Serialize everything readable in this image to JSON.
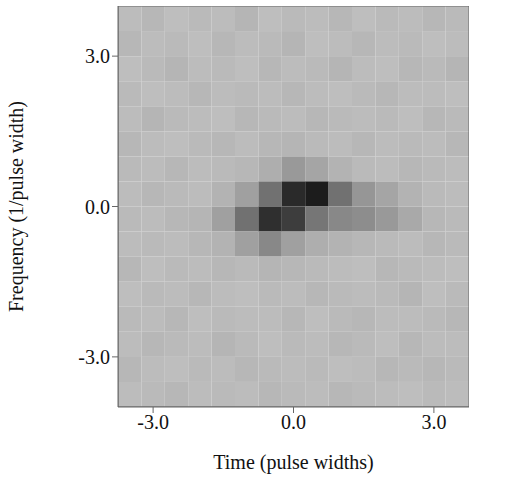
{
  "chart_data": {
    "type": "heatmap",
    "xlabel": "Time (pulse widths)",
    "ylabel": "Frequency (1/pulse width)",
    "xlim": [
      -3.75,
      3.75
    ],
    "ylim": [
      -4,
      4
    ],
    "xticks": [
      {
        "value": -3,
        "label": "-3.0"
      },
      {
        "value": 0,
        "label": "0.0"
      },
      {
        "value": 3,
        "label": "3.0"
      }
    ],
    "yticks": [
      {
        "value": -3,
        "label": "-3.0"
      },
      {
        "value": 0,
        "label": "0.0"
      },
      {
        "value": 3,
        "label": "3.0"
      }
    ],
    "x": [
      -3.5,
      -3,
      -2.5,
      -2,
      -1.5,
      -1,
      -0.5,
      0,
      0.5,
      1,
      1.5,
      2,
      2.5,
      3,
      3.5
    ],
    "y": [
      3.75,
      3.25,
      2.75,
      2.25,
      1.75,
      1.25,
      0.75,
      0.25,
      -0.25,
      -0.75,
      -1.25,
      -1.75,
      -2.25,
      -2.75,
      -3.25,
      -3.75
    ],
    "cells": [
      [
        0.2,
        0.22,
        0.19,
        0.21,
        0.2,
        0.23,
        0.19,
        0.21,
        0.2,
        0.22,
        0.19,
        0.21,
        0.2,
        0.22,
        0.21
      ],
      [
        0.22,
        0.2,
        0.21,
        0.19,
        0.22,
        0.2,
        0.21,
        0.23,
        0.19,
        0.2,
        0.22,
        0.2,
        0.21,
        0.19,
        0.2
      ],
      [
        0.19,
        0.21,
        0.23,
        0.2,
        0.21,
        0.19,
        0.22,
        0.2,
        0.21,
        0.23,
        0.2,
        0.19,
        0.22,
        0.21,
        0.23
      ],
      [
        0.21,
        0.19,
        0.2,
        0.22,
        0.2,
        0.21,
        0.2,
        0.22,
        0.2,
        0.19,
        0.21,
        0.22,
        0.2,
        0.2,
        0.19
      ],
      [
        0.2,
        0.23,
        0.21,
        0.2,
        0.19,
        0.22,
        0.21,
        0.2,
        0.22,
        0.21,
        0.2,
        0.21,
        0.19,
        0.22,
        0.21
      ],
      [
        0.22,
        0.2,
        0.19,
        0.21,
        0.22,
        0.2,
        0.22,
        0.23,
        0.21,
        0.2,
        0.22,
        0.2,
        0.21,
        0.2,
        0.22
      ],
      [
        0.21,
        0.2,
        0.22,
        0.2,
        0.21,
        0.22,
        0.26,
        0.35,
        0.3,
        0.24,
        0.21,
        0.2,
        0.22,
        0.21,
        0.2
      ],
      [
        0.2,
        0.22,
        0.21,
        0.2,
        0.24,
        0.32,
        0.52,
        0.82,
        0.88,
        0.52,
        0.36,
        0.3,
        0.24,
        0.21,
        0.2
      ],
      [
        0.21,
        0.2,
        0.22,
        0.23,
        0.32,
        0.52,
        0.8,
        0.74,
        0.5,
        0.42,
        0.4,
        0.35,
        0.28,
        0.22,
        0.21
      ],
      [
        0.2,
        0.21,
        0.2,
        0.22,
        0.24,
        0.32,
        0.42,
        0.32,
        0.26,
        0.24,
        0.22,
        0.21,
        0.2,
        0.22,
        0.21
      ],
      [
        0.22,
        0.19,
        0.21,
        0.2,
        0.22,
        0.21,
        0.23,
        0.22,
        0.21,
        0.2,
        0.19,
        0.22,
        0.21,
        0.2,
        0.19
      ],
      [
        0.19,
        0.21,
        0.2,
        0.22,
        0.2,
        0.19,
        0.21,
        0.2,
        0.22,
        0.21,
        0.2,
        0.21,
        0.23,
        0.19,
        0.21
      ],
      [
        0.21,
        0.2,
        0.22,
        0.19,
        0.21,
        0.2,
        0.2,
        0.22,
        0.19,
        0.21,
        0.22,
        0.2,
        0.2,
        0.21,
        0.22
      ],
      [
        0.2,
        0.22,
        0.21,
        0.2,
        0.23,
        0.21,
        0.19,
        0.21,
        0.2,
        0.22,
        0.21,
        0.19,
        0.22,
        0.2,
        0.2
      ],
      [
        0.22,
        0.2,
        0.19,
        0.21,
        0.2,
        0.22,
        0.21,
        0.2,
        0.21,
        0.19,
        0.2,
        0.22,
        0.21,
        0.22,
        0.21
      ],
      [
        0.2,
        0.21,
        0.22,
        0.2,
        0.21,
        0.2,
        0.22,
        0.21,
        0.2,
        0.22,
        0.21,
        0.2,
        0.19,
        0.21,
        0.2
      ]
    ]
  }
}
